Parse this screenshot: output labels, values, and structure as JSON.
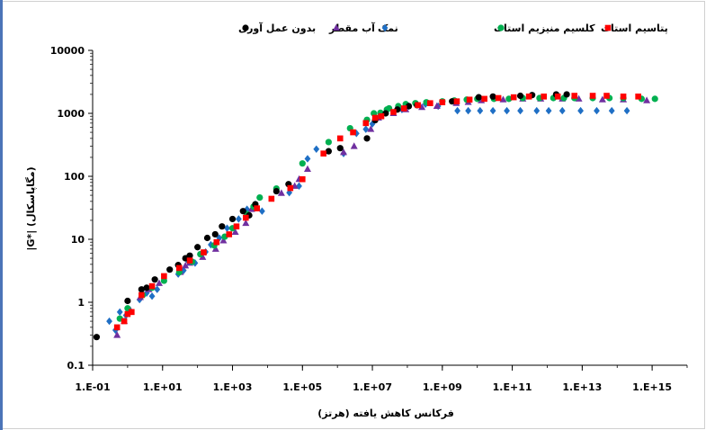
{
  "chart_data": {
    "type": "scatter",
    "xscale": "log",
    "yscale": "log",
    "xlim": [
      0.1,
      1e+16
    ],
    "ylim": [
      0.1,
      10000
    ],
    "xlabel": "فرکانس کاهش یافته (هرتز)",
    "ylabel": "|G*| (مگاپاسکال)",
    "x_ticks": [
      0.1,
      10,
      1000,
      100000,
      10000000,
      1000000000,
      100000000000,
      10000000000000,
      1000000000000000
    ],
    "x_tick_labels": [
      "1.E-01",
      "1.E+01",
      "1.E+03",
      "1.E+05",
      "1.E+07",
      "1.E+09",
      "1.E+11",
      "1.E+13",
      "1.E+15"
    ],
    "y_ticks": [
      0.1,
      1,
      10,
      100,
      1000,
      10000
    ],
    "y_tick_labels": [
      "0.1",
      "1",
      "10",
      "100",
      "1000",
      "10000"
    ],
    "grid": false,
    "legend_position": "top",
    "series": [
      {
        "name": "بدون عمل آوری",
        "marker": "circle",
        "color": "#000000",
        "x": [
          0.13,
          1.0,
          2.5,
          3.5,
          6,
          16,
          28,
          45,
          60,
          100,
          190,
          320,
          500,
          1000,
          2000,
          3000,
          4500,
          18000,
          40000,
          560000,
          1200000,
          7000000,
          12000000,
          24000000,
          52000000,
          110000000,
          190000000,
          1900000000,
          11000000000,
          28000000000,
          170000000000,
          370000000000,
          1800000000000,
          3600000000000
        ],
        "y": [
          0.28,
          1.05,
          1.6,
          1.7,
          2.3,
          3.3,
          3.9,
          5.0,
          5.5,
          7.5,
          10.5,
          12,
          16,
          21,
          28,
          24,
          36,
          58,
          75,
          250,
          280,
          400,
          780,
          1000,
          1150,
          1300,
          1350,
          1550,
          1800,
          1850,
          1900,
          1950,
          2000,
          2000
        ]
      },
      {
        "name": "آب مقطر",
        "marker": "triangle",
        "color": "#7030a0",
        "x": [
          0.5,
          0.8,
          1.2,
          2.3,
          4,
          8,
          32,
          45,
          60,
          140,
          330,
          550,
          1200,
          2400,
          3500,
          25000,
          60000,
          80000,
          140000,
          1500000,
          3000000,
          9000000,
          15000000,
          40000000,
          90000000,
          260000000,
          700000000,
          2500000000,
          5500000000,
          13000000000,
          55000000000,
          200000000000,
          650000000000,
          2700000000000,
          8000000000000,
          38000000000000,
          150000000000000,
          700000000000000
        ],
        "y": [
          0.3,
          0.5,
          0.75,
          1.2,
          1.6,
          2.0,
          3.0,
          3.8,
          4.2,
          5.2,
          7.0,
          9.5,
          13,
          18,
          30,
          54,
          70,
          90,
          130,
          240,
          300,
          560,
          850,
          1000,
          1150,
          1250,
          1300,
          1450,
          1500,
          1600,
          1650,
          1700,
          1700,
          1700,
          1700,
          1650,
          1650,
          1600
        ]
      },
      {
        "name": "نمک",
        "marker": "diamond",
        "color": "#1f6fc5",
        "x": [
          0.3,
          0.45,
          0.6,
          0.9,
          1.1,
          2.2,
          3.5,
          5,
          7,
          28,
          40,
          55,
          85,
          170,
          240,
          420,
          700,
          1500,
          2600,
          4500,
          7000,
          42000,
          80000,
          140000,
          250000,
          1500000,
          3500000,
          6500000,
          10000000,
          19000000,
          70000000,
          110000000,
          330000000,
          760000000,
          2700000000,
          5500000000,
          12000000000,
          28000000000,
          70000000000,
          170000000000,
          500000000000,
          1100000000000,
          2700000000000,
          9000000000000,
          26000000000000,
          70000000000000,
          190000000000000
        ],
        "y": [
          0.5,
          0.36,
          0.7,
          0.62,
          0.7,
          1.1,
          1.4,
          1.25,
          1.6,
          2.8,
          3.2,
          4.4,
          4.2,
          6.3,
          8.2,
          10.5,
          15,
          21,
          30,
          36,
          28,
          55,
          70,
          190,
          270,
          230,
          480,
          560,
          680,
          960,
          1150,
          1300,
          1400,
          1300,
          1100,
          1100,
          1100,
          1100,
          1100,
          1100,
          1100,
          1100,
          1100,
          1100,
          1100,
          1100,
          1100
        ]
      },
      {
        "name": "کلسیم منیزیم استات",
        "marker": "circle",
        "color": "#00b050",
        "x": [
          0.6,
          1.0,
          2.7,
          5,
          11,
          30,
          70,
          120,
          300,
          600,
          1000,
          2600,
          4000,
          6000,
          18000,
          100000,
          560000,
          2300000,
          7000000,
          11000000,
          17000000,
          26000000,
          30000000,
          55000000,
          90000000,
          170000000,
          350000000,
          1000000000,
          2200000000,
          5000000000,
          10000000000,
          30000000000,
          80000000000,
          200000000000,
          600000000000,
          1500000000000,
          3000000000000,
          6000000000000,
          20000000000000,
          60000000000000,
          150000000000000,
          500000000000000,
          1200000000000000
        ],
        "y": [
          0.55,
          0.8,
          1.3,
          1.7,
          2.2,
          3.0,
          4.4,
          5.8,
          8.0,
          11,
          15,
          25,
          33,
          46,
          64,
          160,
          350,
          580,
          790,
          1000,
          1020,
          1150,
          1200,
          1300,
          1400,
          1450,
          1500,
          1550,
          1600,
          1650,
          1700,
          1700,
          1700,
          1750,
          1750,
          1750,
          1750,
          1750,
          1750,
          1750,
          1750,
          1700,
          1700
        ]
      },
      {
        "name": "پتاسیم استات",
        "marker": "square",
        "color": "#ff0000",
        "x": [
          0.5,
          0.8,
          1.0,
          1.3,
          2.5,
          5,
          11,
          30,
          60,
          150,
          350,
          800,
          1300,
          2400,
          5000,
          13000,
          45000,
          100000,
          400000,
          1200000,
          2800000,
          6500000,
          12000000,
          18000000,
          40000000,
          80000000,
          200000000,
          450000000,
          1000000000,
          2600000000,
          6000000000,
          16000000000,
          40000000000,
          110000000000,
          300000000000,
          800000000000,
          2000000000000,
          6000000000000,
          20000000000000,
          50000000000000,
          150000000000000,
          400000000000000
        ],
        "y": [
          0.4,
          0.5,
          0.65,
          0.7,
          1.3,
          1.8,
          2.6,
          3.5,
          4.6,
          6.2,
          9.0,
          12,
          16,
          22,
          31,
          44,
          65,
          90,
          230,
          400,
          500,
          700,
          850,
          900,
          1050,
          1200,
          1350,
          1450,
          1500,
          1550,
          1650,
          1700,
          1750,
          1800,
          1850,
          1850,
          1850,
          1900,
          1900,
          1900,
          1850,
          1850
        ]
      }
    ]
  }
}
